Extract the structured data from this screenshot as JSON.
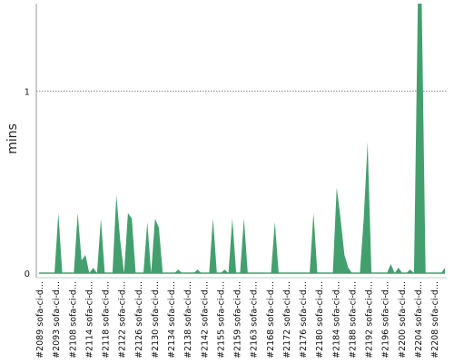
{
  "chart_data": {
    "type": "area",
    "title": "",
    "xlabel": "",
    "ylabel": "mins",
    "ylim": [
      0,
      1.48
    ],
    "yticks": [
      0,
      1
    ],
    "grid": {
      "horizontal_dotted_at": [
        1
      ]
    },
    "colors": {
      "area": "#43a06e",
      "axis": "#999999",
      "grid": "#8a8a8a"
    },
    "x_labels": [
      "#2089 sofa-ci-d...",
      "#2093 sofa-ci-d...",
      "#2108 sofa-ci-d...",
      "#2114 sofa-ci-d...",
      "#2118 sofa-ci-d...",
      "#2122 sofa-ci-d...",
      "#2126 sofa-ci-d...",
      "#2130 sofa-ci-d...",
      "#2134 sofa-ci-d...",
      "#2138 sofa-ci-d...",
      "#2142 sofa-ci-d...",
      "#2155 sofa-ci-d...",
      "#2159 sofa-ci-d...",
      "#2163 sofa-ci-d...",
      "#2168 sofa-ci-d...",
      "#2172 sofa-ci-d...",
      "#2176 sofa-ci-d...",
      "#2180 sofa-ci-d...",
      "#2184 sofa-ci-d...",
      "#2188 sofa-ci-d...",
      "#2192 sofa-ci-d...",
      "#2196 sofa-ci-d...",
      "#2200 sofa-ci-d...",
      "#2204 sofa-ci-d...",
      "#2208 sofa-ci-d..."
    ],
    "values": [
      0.0,
      0.0,
      0.0,
      0.0,
      0.0,
      0.33,
      0.0,
      0.0,
      0.0,
      0.0,
      0.33,
      0.07,
      0.1,
      0.0,
      0.03,
      0.0,
      0.3,
      0.0,
      0.0,
      0.0,
      0.43,
      0.18,
      0.0,
      0.33,
      0.3,
      0.0,
      0.0,
      0.0,
      0.28,
      0.0,
      0.3,
      0.25,
      0.0,
      0.0,
      0.0,
      0.0,
      0.02,
      0.0,
      0.0,
      0.0,
      0.0,
      0.02,
      0.0,
      0.0,
      0.0,
      0.3,
      0.0,
      0.0,
      0.02,
      0.0,
      0.3,
      0.0,
      0.0,
      0.3,
      0.0,
      0.0,
      0.0,
      0.0,
      0.0,
      0.0,
      0.0,
      0.28,
      0.0,
      0.0,
      0.0,
      0.0,
      0.0,
      0.0,
      0.0,
      0.0,
      0.0,
      0.33,
      0.0,
      0.0,
      0.0,
      0.0,
      0.0,
      0.47,
      0.3,
      0.1,
      0.03,
      0.0,
      0.0,
      0.0,
      0.3,
      0.72,
      0.0,
      0.0,
      0.0,
      0.0,
      0.0,
      0.05,
      0.0,
      0.03,
      0.0,
      0.0,
      0.02,
      0.0,
      1.48,
      1.48,
      0.0,
      0.0,
      0.0,
      0.0,
      0.0,
      0.03
    ]
  }
}
